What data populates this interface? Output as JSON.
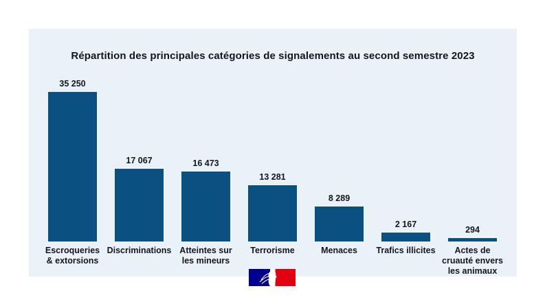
{
  "page": {
    "background": "#ffffff"
  },
  "panel": {
    "background": "#e9f3f7"
  },
  "chart_data": {
    "type": "bar",
    "title": "Répartition des principales catégories de signalements au second semestre 2023",
    "categories": [
      "Escroqueries & extorsions",
      "Discriminations",
      "Atteintes sur les mineurs",
      "Terrorisme",
      "Menaces",
      "Trafics illicites",
      "Actes de cruauté envers les animaux"
    ],
    "category_labels": [
      "Escroqueries\n& extorsions",
      "Discriminations",
      "Atteintes sur\nles mineurs",
      "Terrorisme",
      "Menaces",
      "Trafics illicites",
      "Actes de\ncruauté envers\nles animaux"
    ],
    "values": [
      35250,
      17067,
      16473,
      13281,
      8289,
      2167,
      294
    ],
    "value_labels": [
      "35 250",
      "17 067",
      "16 473",
      "13 281",
      "8 289",
      "2 167",
      "294"
    ],
    "bar_color": "#0a5181",
    "text_color": "#14141e",
    "ylim": [
      0,
      35250
    ],
    "grid": false,
    "legend": "none",
    "xlabel": "",
    "ylabel": ""
  },
  "footer": {
    "logo": "french-government-marianne-logo",
    "logo_colors": {
      "blue": "#000091",
      "red": "#e1000f",
      "white": "#ffffff"
    }
  }
}
